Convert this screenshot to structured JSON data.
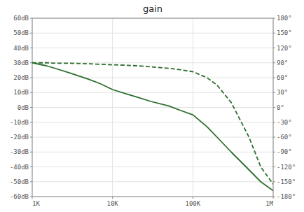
{
  "chart_data": {
    "type": "line",
    "title": "gain",
    "log": "x",
    "grid": true,
    "x": [
      1000,
      1500,
      2000,
      3000,
      5000,
      7000,
      10000,
      15000,
      20000,
      30000,
      50000,
      70000,
      100000,
      150000,
      200000,
      300000,
      500000,
      700000,
      1000000
    ],
    "xlim": [
      1000,
      1000000
    ],
    "xticks": [
      {
        "value": 1000,
        "label": "1K"
      },
      {
        "value": 10000,
        "label": "10K"
      },
      {
        "value": 100000,
        "label": "100K"
      },
      {
        "value": 1000000,
        "label": "1M"
      }
    ],
    "ylim": [
      -60,
      60
    ],
    "yticks": [
      {
        "value": -60,
        "label": "-60dB"
      },
      {
        "value": -50,
        "label": "-50dB"
      },
      {
        "value": -40,
        "label": "-40dB"
      },
      {
        "value": -30,
        "label": "-30dB"
      },
      {
        "value": -20,
        "label": "-20dB"
      },
      {
        "value": -10,
        "label": "-10dB"
      },
      {
        "value": 0,
        "label": "0dB"
      },
      {
        "value": 10,
        "label": "10dB"
      },
      {
        "value": 20,
        "label": "20dB"
      },
      {
        "value": 30,
        "label": "30dB"
      },
      {
        "value": 40,
        "label": "40dB"
      },
      {
        "value": 50,
        "label": "50dB"
      },
      {
        "value": 60,
        "label": "60dB"
      }
    ],
    "y2lim": [
      -180,
      180
    ],
    "y2ticks": [
      {
        "value": -180,
        "label": "-180°"
      },
      {
        "value": -150,
        "label": "-150°"
      },
      {
        "value": -120,
        "label": "-120°"
      },
      {
        "value": -90,
        "label": "-90°"
      },
      {
        "value": -60,
        "label": "-60°"
      },
      {
        "value": -30,
        "label": "-30°"
      },
      {
        "value": 0,
        "label": "0°"
      },
      {
        "value": 30,
        "label": "30°"
      },
      {
        "value": 60,
        "label": "60°"
      },
      {
        "value": 90,
        "label": "90°"
      },
      {
        "value": 120,
        "label": "120°"
      },
      {
        "value": 150,
        "label": "150°"
      },
      {
        "value": 180,
        "label": "180°"
      }
    ],
    "series": [
      {
        "color": "#2d6e2d",
        "line_style": "solid",
        "values": [
          30,
          28,
          26,
          23,
          19,
          16,
          12,
          9,
          7,
          4,
          1,
          -2,
          -5,
          -13,
          -20,
          -30,
          -42,
          -50,
          -56
        ]
      },
      {
        "color": "#2d6e2d",
        "line_style": "dashed",
        "axis": "y2",
        "values": [
          90,
          90,
          89,
          89,
          88,
          87,
          86,
          85,
          84,
          82,
          79,
          76,
          72,
          60,
          45,
          10,
          -60,
          -120,
          -155
        ]
      }
    ]
  }
}
